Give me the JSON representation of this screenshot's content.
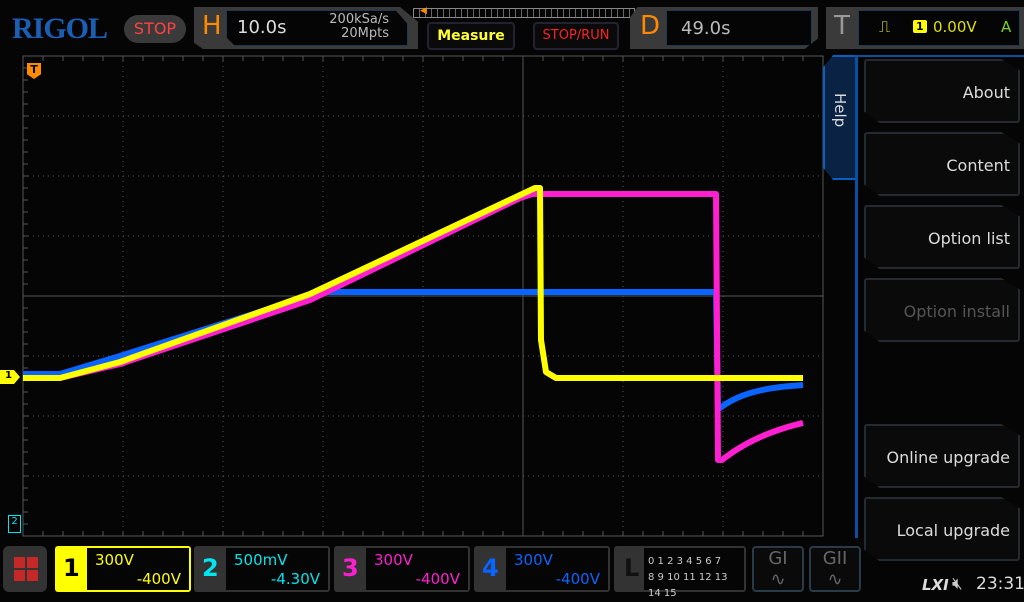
{
  "header": {
    "logo": "RIGOL",
    "run_state": "STOP",
    "horizontal": {
      "letter": "H",
      "timebase": "10.0s",
      "sample_rate": "200kSa/s",
      "memory_depth": "20Mpts"
    },
    "measure_label": "Measure",
    "stop_run_label": "STOP/RUN",
    "delay": {
      "letter": "D",
      "value": "49.0s"
    },
    "trigger": {
      "letter": "T",
      "edge_icon": "rising-edge-icon",
      "source": "1",
      "level": "0.00V",
      "mode": "A"
    }
  },
  "help_menu": {
    "tab": "Help",
    "items": [
      {
        "label": "About",
        "enabled": true
      },
      {
        "label": "Content",
        "enabled": true
      },
      {
        "label": "Option list",
        "enabled": true
      },
      {
        "label": "Option install",
        "enabled": false
      },
      {
        "label": "Online upgrade",
        "enabled": true
      },
      {
        "label": "Local upgrade",
        "enabled": true
      }
    ]
  },
  "channels": [
    {
      "num": "1",
      "scale": "300V",
      "offset": "-400V",
      "color": "#ffff00",
      "active": true
    },
    {
      "num": "2",
      "scale": "500mV",
      "offset": "-4.30V",
      "color": "#00e5ee"
    },
    {
      "num": "3",
      "scale": "300V",
      "offset": "-400V",
      "color": "#ff1fd0"
    },
    {
      "num": "4",
      "scale": "300V",
      "offset": "-400V",
      "color": "#0a64ff"
    }
  ],
  "logic": {
    "letter": "L",
    "row1": "0 1 2 3  4 5 6 7",
    "row2": "8 9 10 11 12 13 14 15"
  },
  "generators": [
    "GI",
    "GII"
  ],
  "status": {
    "lxi": "LXI",
    "sound_icon": "speaker-muted-icon",
    "time": "23:31"
  },
  "markers": {
    "trigger_pos": "T",
    "ch1": "1",
    "ch2": "2"
  }
}
